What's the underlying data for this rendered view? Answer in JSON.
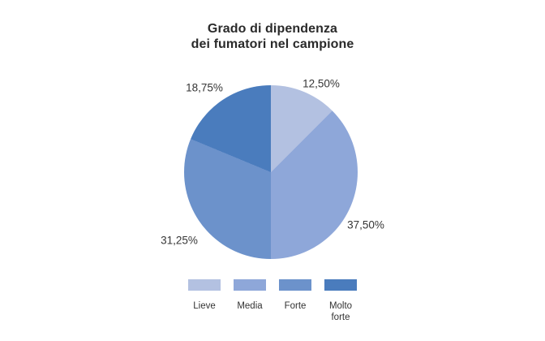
{
  "page": {
    "background": "#ffffff"
  },
  "chart_data": {
    "type": "pie",
    "title": "Grado di dipendenza dei fumatori nel campione",
    "title_lines": [
      "Grado di dipendenza",
      "dei fumatori nel campione"
    ],
    "start_angle_deg": 0,
    "direction": "clockwise",
    "legend_position": "bottom",
    "text_color": "#363636",
    "slices": [
      {
        "label": "Lieve",
        "value_pct": 12.5,
        "display": "12,50%",
        "color": "#b3c1e1"
      },
      {
        "label": "Media",
        "value_pct": 37.5,
        "display": "37,50%",
        "color": "#8ea7d9"
      },
      {
        "label": "Forte",
        "value_pct": 31.25,
        "display": "31,25%",
        "color": "#6c92cb"
      },
      {
        "label": "Molto forte",
        "value_pct": 18.75,
        "display": "18,75%",
        "color": "#4a7cbd"
      }
    ]
  }
}
